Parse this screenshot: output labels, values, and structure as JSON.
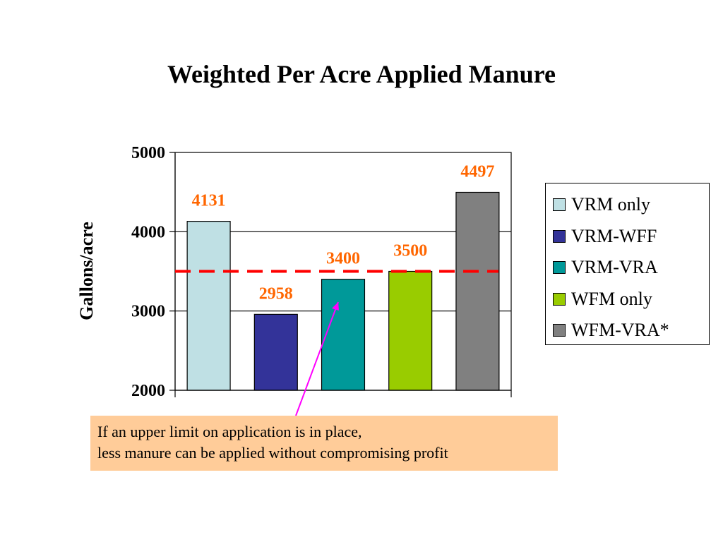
{
  "slide": {
    "title": "Weighted Per Acre Applied Manure"
  },
  "chart_data": {
    "type": "bar",
    "title": "Weighted Per Acre Applied Manure",
    "xlabel": "",
    "ylabel": "Gallons/acre",
    "ylim": [
      2000,
      5000
    ],
    "yticks": [
      2000,
      3000,
      4000,
      5000
    ],
    "grid": true,
    "legend_position": "right",
    "categories": [
      "VRM only",
      "VRM-WFF",
      "VRM-VRA",
      "WFM only",
      "WFM-VRA*"
    ],
    "values": [
      4131,
      2958,
      3400,
      3500,
      4497
    ],
    "data_labels": [
      "4131",
      "2958",
      "3400",
      "3500",
      "4497"
    ],
    "colors": [
      "#bfe0e4",
      "#333399",
      "#009999",
      "#99cc00",
      "#808080"
    ],
    "data_label_color": "#ff6600",
    "reference_line": {
      "value": 3500,
      "color": "#ff0000",
      "style": "dashed"
    }
  },
  "callout": {
    "lines": [
      "If an upper limit on application is in place,",
      "less manure can be applied without compromising profit"
    ],
    "background": "#ffcc99",
    "arrow_color": "#ff00ff"
  }
}
